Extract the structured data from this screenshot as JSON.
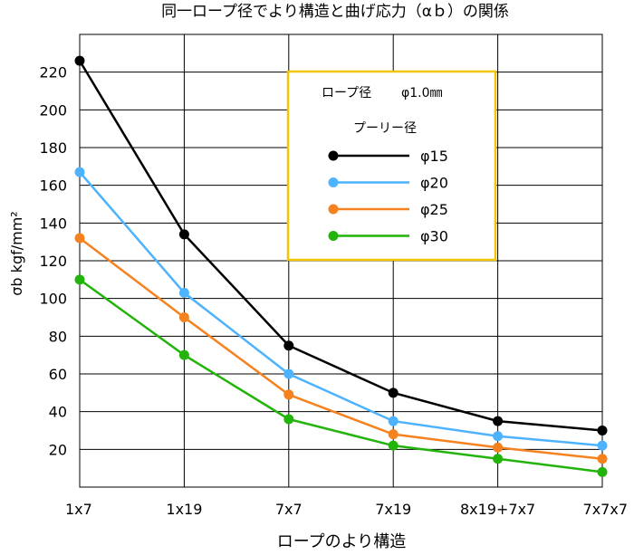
{
  "chart_data": {
    "type": "line",
    "title": "同一ロープ径でより構造と曲げ応力（αｂ）の関係",
    "xlabel": "ロープのより構造",
    "ylabel": "σb  kgf/mm²",
    "categories": [
      "1x7",
      "1x19",
      "7x7",
      "7x19",
      "8x19+7x7",
      "7x7x7"
    ],
    "ylim": [
      0,
      240
    ],
    "yticks": [
      20,
      40,
      60,
      80,
      100,
      120,
      140,
      160,
      180,
      200,
      220
    ],
    "grid": true,
    "legend_placement": "top-right",
    "legend_header": {
      "rope_diameter_label": "ロープ径",
      "rope_diameter_value": "φ1.0㎜",
      "pulley_label": "プーリー径"
    },
    "series": [
      {
        "name": "φ15",
        "color": "#000000",
        "values": [
          226,
          134,
          75,
          50,
          35,
          30
        ]
      },
      {
        "name": "φ20",
        "color": "#4db3ff",
        "values": [
          167,
          103,
          60,
          35,
          27,
          22
        ]
      },
      {
        "name": "φ25",
        "color": "#f5821f",
        "values": [
          132,
          90,
          49,
          28,
          21,
          15
        ]
      },
      {
        "name": "φ30",
        "color": "#22b40a",
        "values": [
          110,
          70,
          36,
          22,
          15,
          8
        ]
      }
    ],
    "legend_border_color": "#f2c500"
  }
}
